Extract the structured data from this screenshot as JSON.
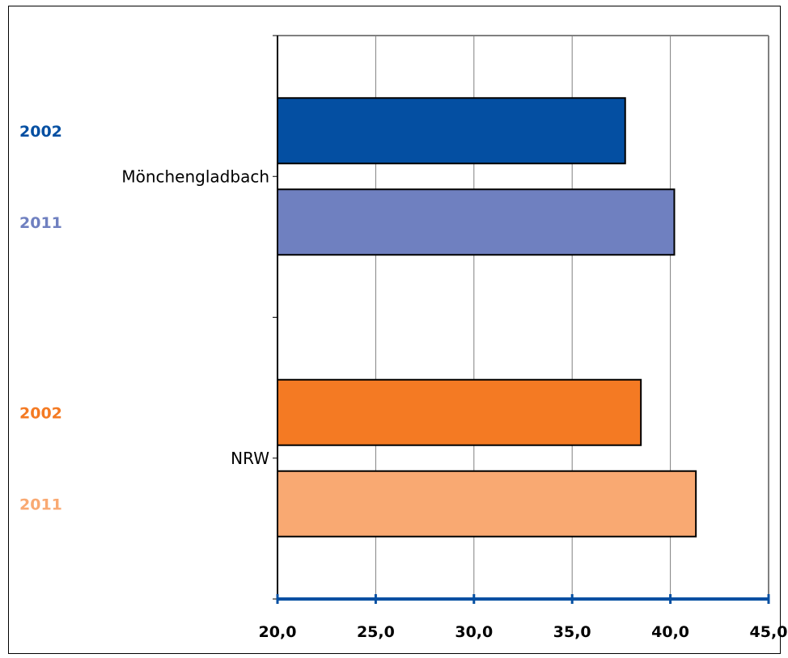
{
  "chart_data": {
    "type": "bar",
    "orientation": "horizontal",
    "xlim": [
      20,
      45
    ],
    "x_ticks": [
      "20,0",
      "25,0",
      "30,0",
      "35,0",
      "40,0",
      "45,0"
    ],
    "tick_values": [
      20,
      25,
      30,
      35,
      40,
      45
    ],
    "grid": true,
    "groups": [
      {
        "category": "Mönchengladbach",
        "bars": [
          {
            "year": "2002",
            "value": 37.7,
            "color": "#044fa2"
          },
          {
            "year": "2011",
            "value": 40.2,
            "color": "#6f80c0"
          }
        ]
      },
      {
        "category": "NRW",
        "bars": [
          {
            "year": "2002",
            "value": 38.5,
            "color": "#f47a23"
          },
          {
            "year": "2011",
            "value": 41.3,
            "color": "#f9a972"
          }
        ]
      }
    ],
    "colors": {
      "axis": "#044fa2",
      "grid": "#808080"
    }
  }
}
